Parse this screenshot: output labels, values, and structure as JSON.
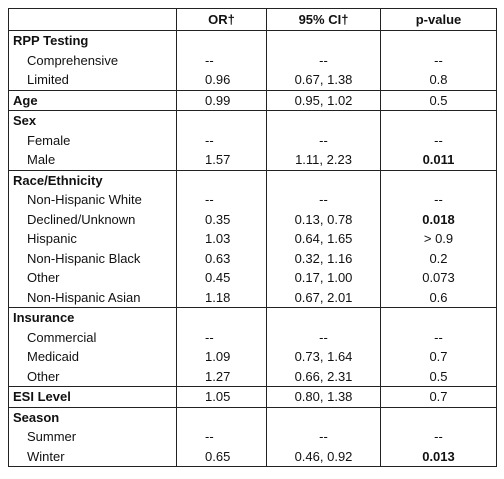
{
  "table": {
    "columns": [
      "OR†",
      "95% CI†",
      "p-value"
    ],
    "groups": [
      {
        "label": "RPP Testing",
        "rows": [
          {
            "label": "Comprehensive",
            "values": [
              "--",
              "--",
              "--"
            ]
          },
          {
            "label": "Limited",
            "values": [
              "0.96",
              "0.67, 1.38",
              "0.8"
            ]
          }
        ]
      },
      {
        "label": "Age",
        "values": [
          "0.99",
          "0.95, 1.02",
          "0.5"
        ],
        "rows": []
      },
      {
        "label": "Sex",
        "rows": [
          {
            "label": "Female",
            "values": [
              "--",
              "--",
              "--"
            ]
          },
          {
            "label": "Male",
            "values": [
              "1.57",
              "1.11, 2.23",
              "0.011"
            ],
            "bold_p": true
          }
        ]
      },
      {
        "label": "Race/Ethnicity",
        "rows": [
          {
            "label": "Non-Hispanic White",
            "values": [
              "--",
              "--",
              "--"
            ]
          },
          {
            "label": "Declined/Unknown",
            "values": [
              "0.35",
              "0.13, 0.78",
              "0.018"
            ],
            "bold_p": true
          },
          {
            "label": "Hispanic",
            "values": [
              "1.03",
              "0.64, 1.65",
              "> 0.9"
            ]
          },
          {
            "label": "Non-Hispanic Black",
            "values": [
              "0.63",
              "0.32, 1.16",
              "0.2"
            ]
          },
          {
            "label": "Other",
            "values": [
              "0.45",
              "0.17, 1.00",
              "0.073"
            ]
          },
          {
            "label": "Non-Hispanic Asian",
            "values": [
              "1.18",
              "0.67, 2.01",
              "0.6"
            ]
          }
        ]
      },
      {
        "label": "Insurance",
        "rows": [
          {
            "label": "Commercial",
            "values": [
              "--",
              "--",
              "--"
            ]
          },
          {
            "label": "Medicaid",
            "values": [
              "1.09",
              "0.73, 1.64",
              "0.7"
            ]
          },
          {
            "label": "Other",
            "values": [
              "1.27",
              "0.66, 2.31",
              "0.5"
            ]
          }
        ]
      },
      {
        "label": "ESI Level",
        "values": [
          "1.05",
          "0.80, 1.38",
          "0.7"
        ],
        "rows": []
      },
      {
        "label": "Season",
        "rows": [
          {
            "label": "Summer",
            "values": [
              "--",
              "--",
              "--"
            ]
          },
          {
            "label": "Winter",
            "values": [
              "0.65",
              "0.46, 0.92",
              "0.013"
            ],
            "bold_p": true
          }
        ]
      }
    ]
  }
}
